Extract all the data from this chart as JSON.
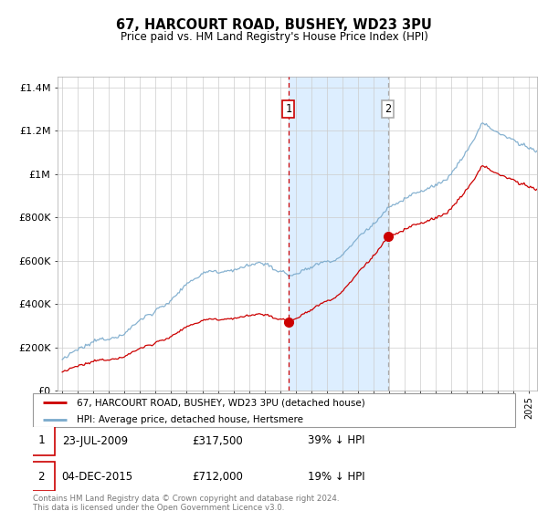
{
  "title": "67, HARCOURT ROAD, BUSHEY, WD23 3PU",
  "subtitle": "Price paid vs. HM Land Registry's House Price Index (HPI)",
  "hpi_label": "HPI: Average price, detached house, Hertsmere",
  "sold_label": "67, HARCOURT ROAD, BUSHEY, WD23 3PU (detached house)",
  "footer": "Contains HM Land Registry data © Crown copyright and database right 2024.\nThis data is licensed under the Open Government Licence v3.0.",
  "sale1": {
    "date": "23-JUL-2009",
    "price": 317500,
    "label": "39% ↓ HPI",
    "num": "1",
    "year": 2009.54
  },
  "sale2": {
    "date": "04-DEC-2015",
    "price": 712000,
    "label": "19% ↓ HPI",
    "num": "2",
    "year": 2015.92
  },
  "sold_color": "#cc0000",
  "hpi_color": "#7aaacc",
  "highlight_color": "#ddeeff",
  "vline1_color": "#cc0000",
  "vline2_color": "#aaaaaa",
  "ylim": [
    0,
    1400000
  ],
  "yticks": [
    0,
    200000,
    400000,
    600000,
    800000,
    1000000,
    1200000,
    1400000
  ],
  "ytick_labels": [
    "£0",
    "£200K",
    "£400K",
    "£600K",
    "£800K",
    "£1M",
    "£1.2M",
    "£1.4M"
  ],
  "background_color": "#ffffff",
  "grid_color": "#cccccc",
  "xlim_start": 1995.0,
  "xlim_end": 2025.5
}
